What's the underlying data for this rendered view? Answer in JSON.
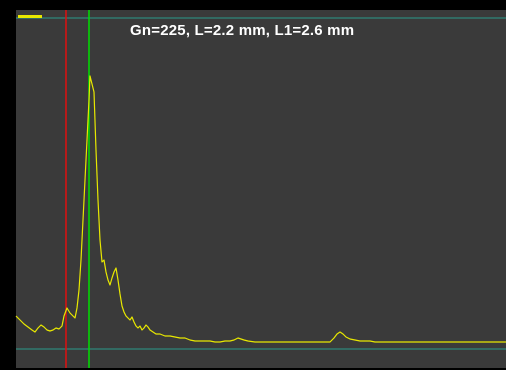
{
  "readout": {
    "text": "Gn=225, L=2.2 mm, L1=2.6 mm"
  },
  "colors": {
    "background": "#000000",
    "plot_background": "#3a3a3a",
    "signal_trace": "#e8e800",
    "cursor_l": "#e01010",
    "cursor_l1": "#00e000",
    "reference_lines": "#2a9a8a",
    "readout_text": "#ffffff",
    "status_indicator": "#e8e800"
  },
  "icons": {
    "status_indicator": "status-bar-icon"
  }
}
